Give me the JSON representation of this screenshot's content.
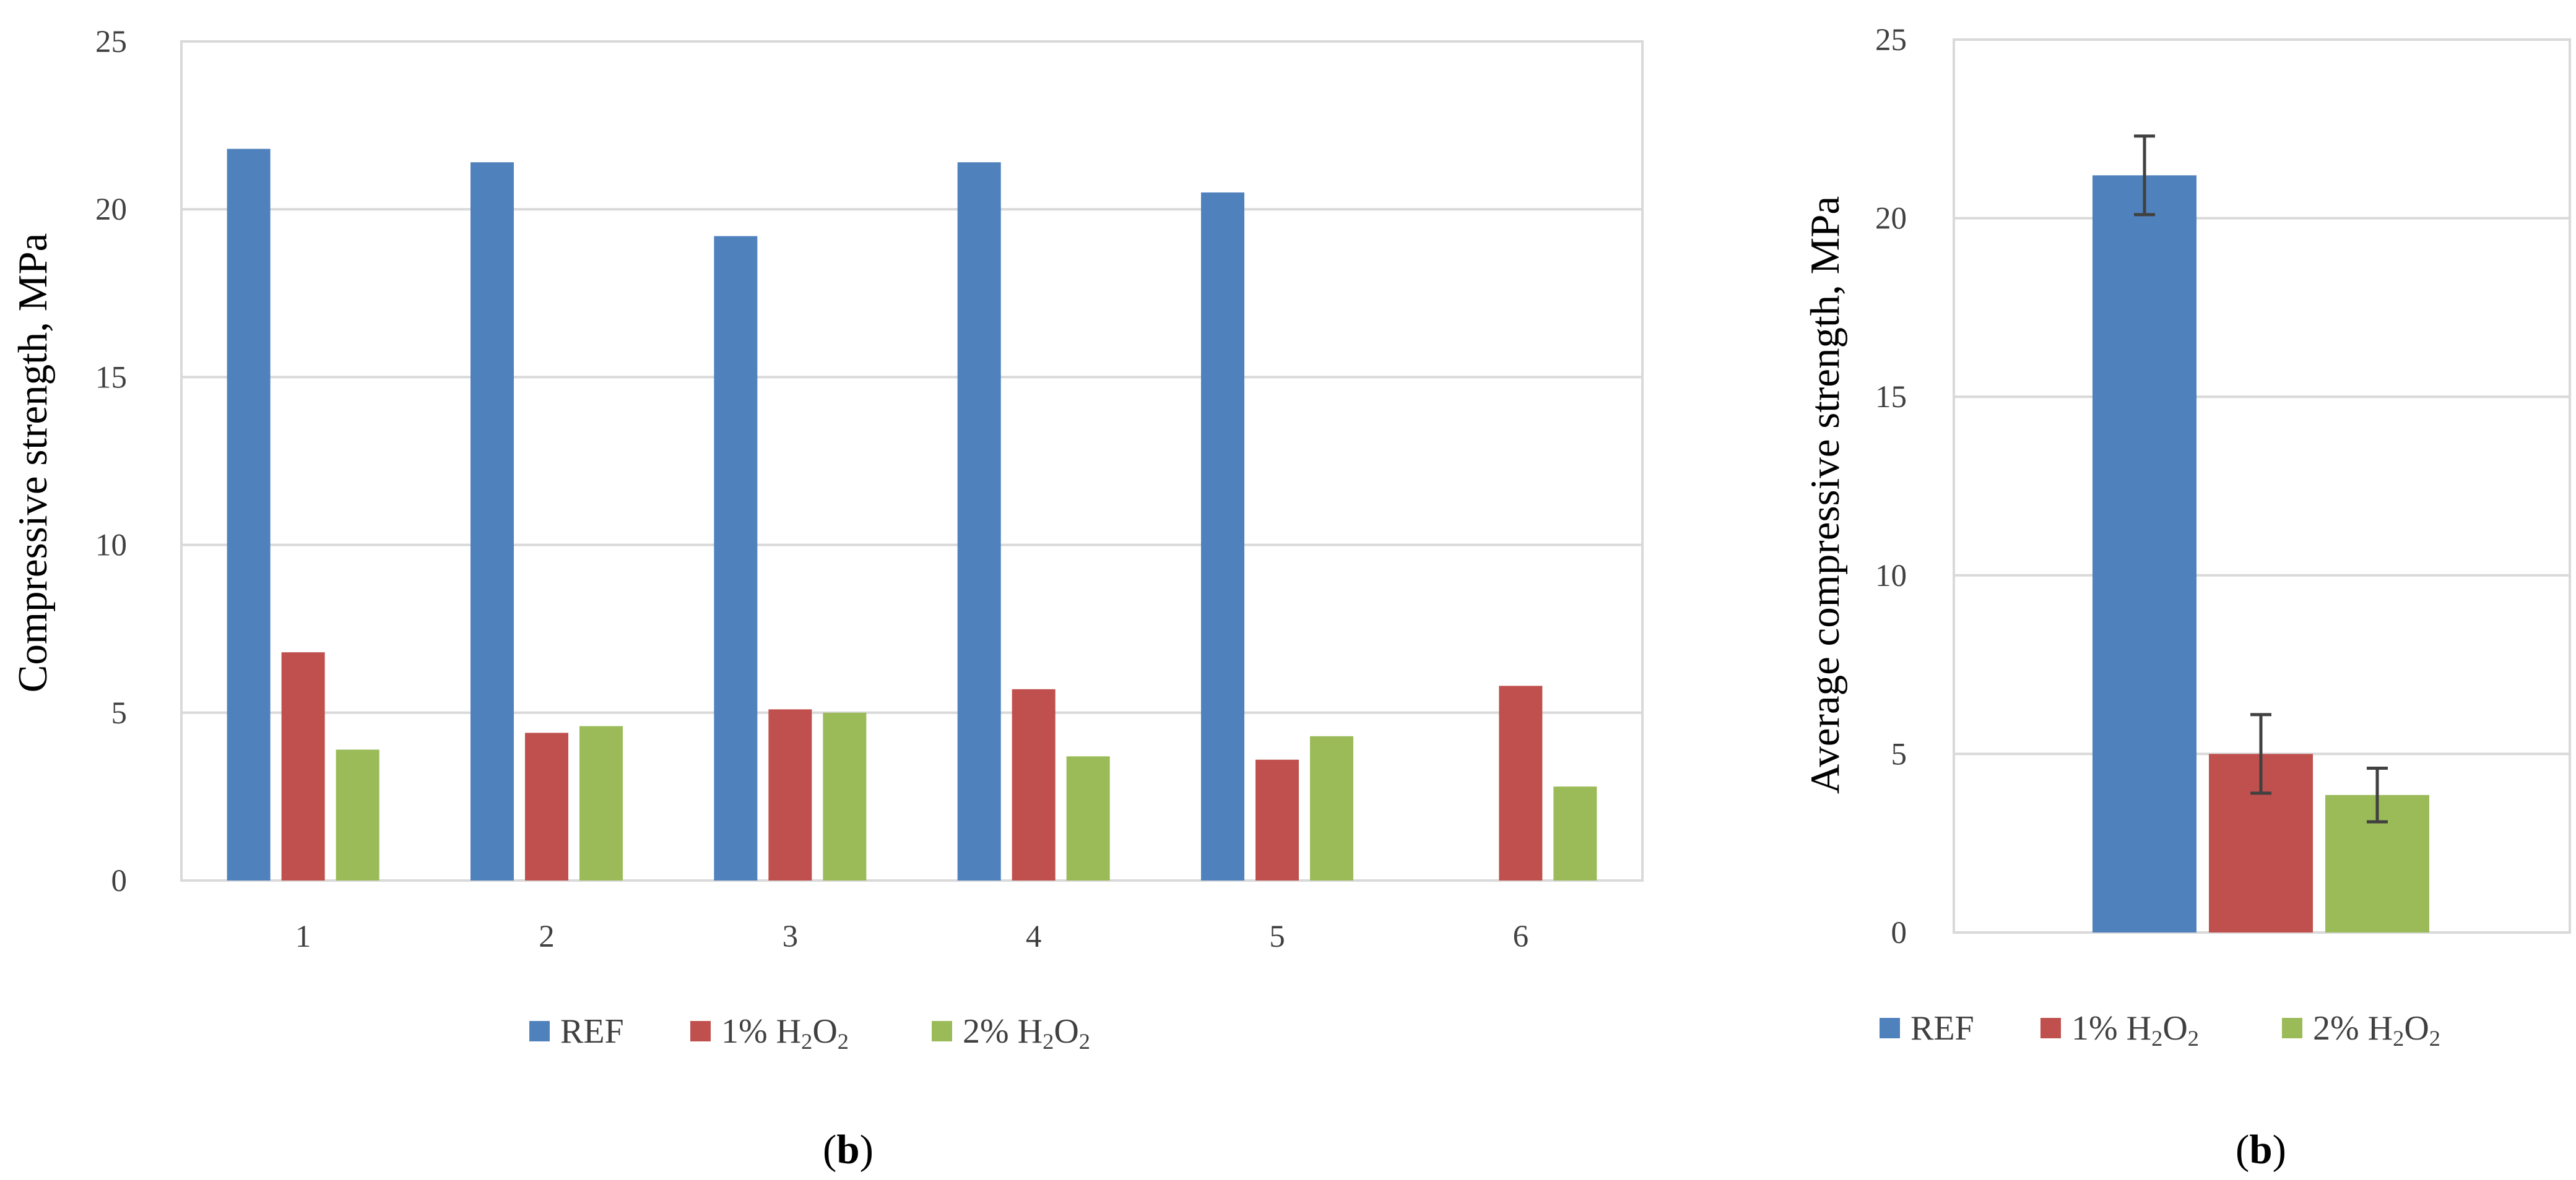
{
  "chart_data": [
    {
      "type": "bar",
      "panel_label": "b",
      "categories": [
        "1",
        "2",
        "3",
        "4",
        "5",
        "6"
      ],
      "series": [
        {
          "name": "REF",
          "values": [
            21.8,
            21.4,
            19.2,
            21.4,
            20.5,
            null
          ]
        },
        {
          "name": "1% H2O2",
          "values": [
            6.8,
            4.4,
            5.1,
            5.7,
            3.6,
            5.8
          ]
        },
        {
          "name": "2% H2O2",
          "values": [
            3.9,
            4.6,
            5.0,
            3.7,
            4.3,
            2.8
          ]
        }
      ],
      "title": "",
      "xlabel": "",
      "ylabel": "Compressive strength, MPa",
      "ylim": [
        0,
        25
      ],
      "yticks": [
        0,
        5,
        10,
        15,
        20,
        25
      ],
      "grid": true,
      "legend_position": "bottom"
    },
    {
      "type": "bar",
      "panel_label": "b",
      "categories": [
        "REF",
        "1% H2O2",
        "2% H2O2"
      ],
      "values": [
        21.2,
        5.0,
        3.85
      ],
      "error": [
        1.1,
        1.1,
        0.75
      ],
      "title": "",
      "xlabel": "",
      "ylabel": "Average compressive strength, MPa",
      "ylim": [
        0,
        25
      ],
      "yticks": [
        0,
        5,
        10,
        15,
        20,
        25
      ],
      "grid": true,
      "legend_position": "bottom"
    }
  ],
  "colors": {
    "REF": "#4F81BD",
    "1% H2O2": "#C0504D",
    "2% H2O2": "#9BBB59",
    "grid": "#d9d9d9",
    "error_bar": "#404040"
  }
}
